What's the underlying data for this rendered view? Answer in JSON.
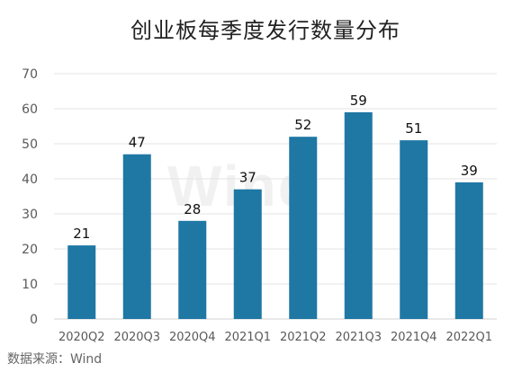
{
  "chart_data": {
    "type": "bar",
    "title": "创业板每季度发行数量分布",
    "categories": [
      "2020Q2",
      "2020Q3",
      "2020Q4",
      "2021Q1",
      "2021Q2",
      "2021Q3",
      "2021Q4",
      "2022Q1"
    ],
    "values": [
      21,
      47,
      28,
      37,
      52,
      59,
      51,
      39
    ],
    "data_labels": [
      "21",
      "47",
      "28",
      "37",
      "52",
      "59",
      "51",
      "39"
    ],
    "ylim": [
      0,
      70
    ],
    "yticks": [
      0,
      10,
      20,
      30,
      40,
      50,
      60,
      70
    ],
    "xlabel": "",
    "ylabel": "",
    "grid": true,
    "legend": "none",
    "bar_color": "#1f77a4",
    "watermark": "Wind"
  },
  "source": "数据来源：Wind"
}
